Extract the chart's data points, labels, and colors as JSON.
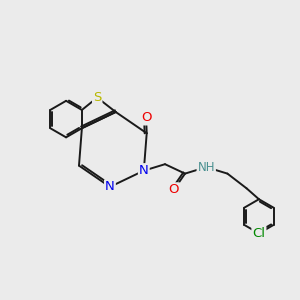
{
  "bg_color": "#ebebeb",
  "bond_color": "#1a1a1a",
  "bond_width": 1.4,
  "dbo": 0.07,
  "atom_colors": {
    "S": "#b8b800",
    "N": "#0000ee",
    "O": "#ee0000",
    "H": "#4a9090",
    "Cl": "#008800",
    "C": "#1a1a1a"
  },
  "fs": 8.5,
  "fig_size": [
    3.0,
    3.0
  ],
  "dpi": 100
}
